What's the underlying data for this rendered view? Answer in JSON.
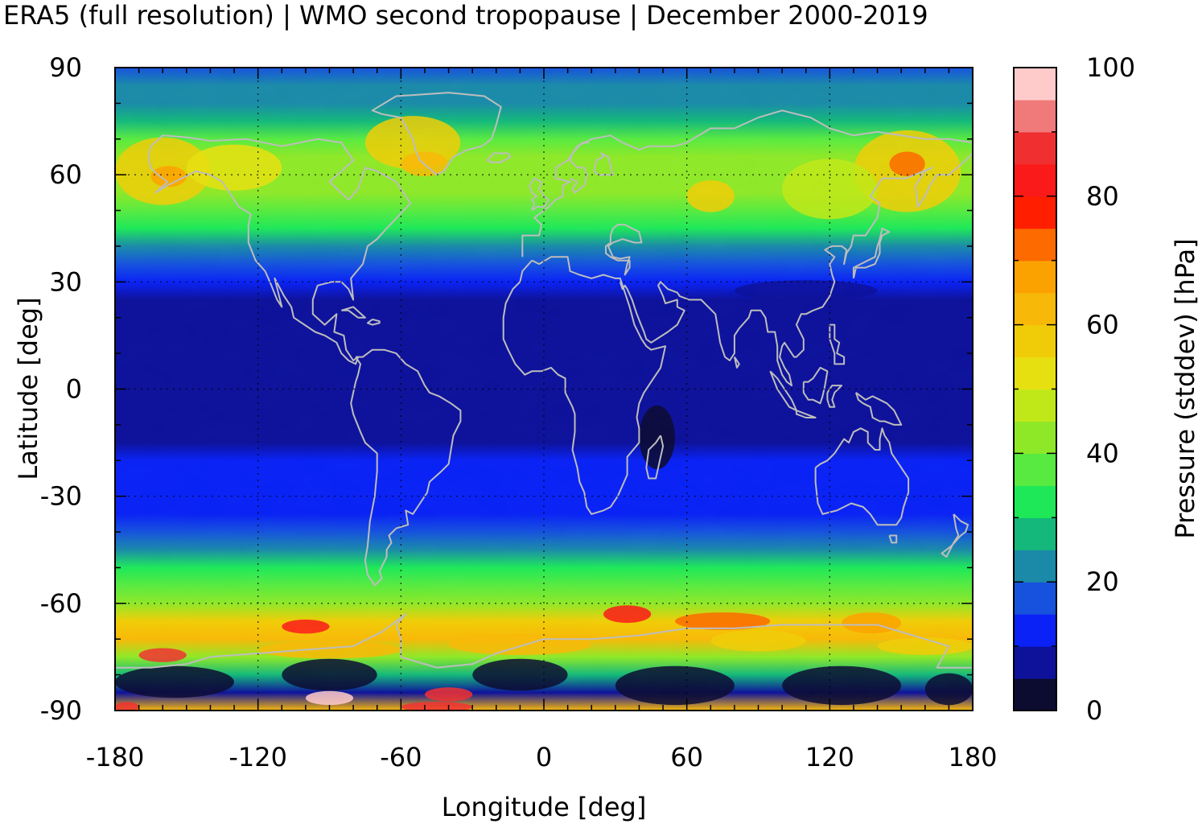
{
  "title": "ERA5 (full resolution) | WMO second tropopause | December 2000-2019",
  "chart_data": {
    "type": "heatmap",
    "title": "ERA5 (full resolution) | WMO second tropopause | December 2000-2019",
    "xlabel": "Longitude [deg]",
    "ylabel": "Latitude [deg]",
    "colorbar_label": "Pressure (stddev) [hPa]",
    "xlim": [
      -180,
      180
    ],
    "ylim": [
      -90,
      90
    ],
    "x_ticks": [
      -180,
      -120,
      -60,
      0,
      60,
      120,
      180
    ],
    "y_ticks": [
      90,
      60,
      30,
      0,
      -30,
      -60,
      -90
    ],
    "x_tick_labels": [
      "-180",
      "-120",
      "-60",
      "0",
      "60",
      "120",
      "180"
    ],
    "y_tick_labels": [
      "90",
      "60",
      "30",
      "0",
      "-30",
      "-60",
      "-90"
    ],
    "colorbar_range": [
      0,
      100
    ],
    "colorbar_ticks": [
      0,
      20,
      40,
      60,
      80,
      100
    ],
    "colorbar_tick_labels": [
      "0",
      "20",
      "40",
      "60",
      "80",
      "100"
    ],
    "grid": true,
    "coastlines": true,
    "levels": [
      0,
      5,
      10,
      15,
      20,
      25,
      30,
      35,
      40,
      45,
      50,
      55,
      60,
      65,
      70,
      75,
      80,
      85,
      90,
      95,
      100
    ],
    "colors": [
      "#0c0c30",
      "#0e129a",
      "#0a22f5",
      "#1652dd",
      "#1a8aa8",
      "#14b87a",
      "#1ee858",
      "#58ea40",
      "#8ee828",
      "#c0e818",
      "#e6e010",
      "#f0cc08",
      "#f8b808",
      "#fba200",
      "#fc6a00",
      "#ff1e00",
      "#fa1a1a",
      "#f03030",
      "#f07a7a",
      "#ffcaca"
    ],
    "zonal_profile": {
      "latitudes": [
        90,
        85,
        80,
        75,
        70,
        65,
        60,
        55,
        50,
        45,
        40,
        35,
        30,
        25,
        20,
        15,
        10,
        5,
        0,
        -5,
        -10,
        -15,
        -20,
        -25,
        -30,
        -35,
        -40,
        -45,
        -50,
        -55,
        -60,
        -65,
        -70,
        -75,
        -80,
        -85,
        -90
      ],
      "stddev_hpa": [
        18,
        22,
        24,
        28,
        38,
        44,
        44,
        40,
        36,
        32,
        22,
        16,
        12,
        8,
        7,
        7,
        8,
        8,
        8,
        8,
        8,
        8,
        10,
        12,
        10,
        14,
        18,
        22,
        30,
        36,
        42,
        55,
        62,
        40,
        25,
        8,
        60
      ]
    }
  }
}
